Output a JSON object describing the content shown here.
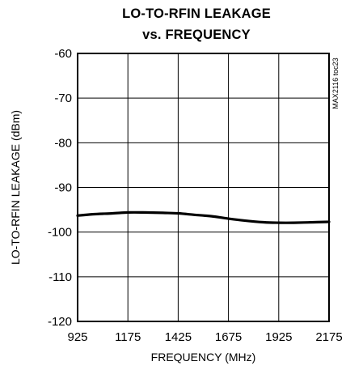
{
  "chart_data": {
    "type": "line",
    "title_line1": "LO-TO-RFIN LEAKAGE",
    "title_line2": "vs. FREQUENCY",
    "xlabel": "FREQUENCY (MHz)",
    "ylabel": "LO-TO-RFIN LEAKAGE (dBm)",
    "xlim": [
      925,
      2175
    ],
    "ylim": [
      -120,
      -60
    ],
    "x_ticks": [
      925,
      1175,
      1425,
      1675,
      1925,
      2175
    ],
    "y_ticks": [
      -60,
      -70,
      -80,
      -90,
      -100,
      -110,
      -120
    ],
    "grid": true,
    "annotation": "MAX2116 toc23",
    "series": [
      {
        "x": [
          925,
          1000,
          1100,
          1175,
          1250,
          1350,
          1425,
          1500,
          1600,
          1675,
          1750,
          1850,
          1925,
          2000,
          2100,
          2175
        ],
        "values": [
          -96.3,
          -96.0,
          -95.8,
          -95.6,
          -95.6,
          -95.7,
          -95.8,
          -96.1,
          -96.5,
          -97.0,
          -97.4,
          -97.8,
          -97.9,
          -97.9,
          -97.8,
          -97.7
        ]
      }
    ]
  }
}
